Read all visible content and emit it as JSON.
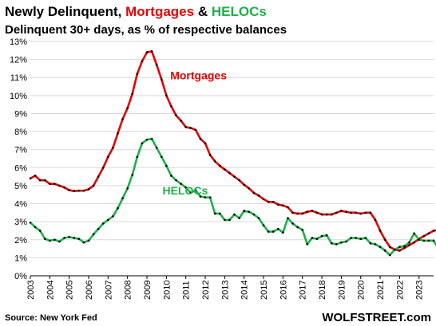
{
  "chart_data": {
    "type": "line",
    "title_parts": [
      {
        "text": "Newly Delinquent, ",
        "color": "#000000"
      },
      {
        "text": "Mortgages",
        "color": "#e60000"
      },
      {
        "text": " & ",
        "color": "#000000"
      },
      {
        "text": "HELOCs",
        "color": "#1fb04a"
      }
    ],
    "subtitle": "Delinquent 30+ days, as % of respective balances",
    "source": "Source: New York Fed",
    "brand": "WOLFSTREET.com",
    "ylim": [
      0,
      13
    ],
    "y_ticks": [
      0,
      1,
      2,
      3,
      4,
      5,
      6,
      7,
      8,
      9,
      10,
      11,
      12,
      13
    ],
    "y_tick_labels": [
      "0%",
      "1%",
      "2%",
      "3%",
      "4%",
      "5%",
      "6%",
      "7%",
      "8%",
      "9%",
      "10%",
      "11%",
      "12%",
      "13%"
    ],
    "x_tick_labels": [
      "2003",
      "2004",
      "2005",
      "2006",
      "2007",
      "2008",
      "2009",
      "2010",
      "2011",
      "2012",
      "2013",
      "2014",
      "2015",
      "2016",
      "2017",
      "2018",
      "2019",
      "2020",
      "2021",
      "2022",
      "2023"
    ],
    "x_start_year": 2003,
    "grid": true,
    "annotations": [
      {
        "text": "Mortgages",
        "color": "#e60000"
      },
      {
        "text": "HELOCs",
        "color": "#1fb04a"
      }
    ],
    "series": [
      {
        "name": "Mortgages",
        "color": "#e60000",
        "values": [
          5.4,
          5.55,
          5.3,
          5.3,
          5.1,
          5.1,
          5.0,
          4.9,
          4.75,
          4.7,
          4.72,
          4.72,
          4.8,
          5.0,
          5.5,
          6.0,
          6.6,
          7.1,
          7.9,
          8.7,
          9.3,
          10.1,
          11.2,
          11.9,
          12.4,
          12.45,
          11.7,
          10.9,
          10.0,
          9.4,
          8.9,
          8.6,
          8.25,
          8.2,
          8.1,
          7.6,
          7.35,
          6.7,
          6.35,
          6.1,
          5.9,
          5.7,
          5.5,
          5.3,
          5.05,
          4.85,
          4.6,
          4.45,
          4.25,
          4.1,
          4.1,
          3.95,
          3.9,
          3.8,
          3.5,
          3.45,
          3.45,
          3.55,
          3.6,
          3.5,
          3.4,
          3.4,
          3.4,
          3.5,
          3.6,
          3.55,
          3.5,
          3.5,
          3.45,
          3.5,
          3.5,
          3.1,
          2.5,
          2.0,
          1.6,
          1.45,
          1.4,
          1.55,
          1.7,
          1.85,
          2.05,
          2.2,
          2.35,
          2.5,
          2.55
        ]
      },
      {
        "name": "HELOCs",
        "color": "#1fb04a",
        "values": [
          2.95,
          2.7,
          2.5,
          2.05,
          1.95,
          2.0,
          1.9,
          2.1,
          2.15,
          2.1,
          2.05,
          1.85,
          1.95,
          2.3,
          2.6,
          2.9,
          3.1,
          3.3,
          3.75,
          4.3,
          4.85,
          5.6,
          6.6,
          7.35,
          7.55,
          7.6,
          7.1,
          6.6,
          6.1,
          5.55,
          5.3,
          5.1,
          4.9,
          4.6,
          4.75,
          4.4,
          4.35,
          4.35,
          3.45,
          3.45,
          3.1,
          3.1,
          3.4,
          3.2,
          3.6,
          3.55,
          3.4,
          3.2,
          2.8,
          2.45,
          2.45,
          2.6,
          2.4,
          3.2,
          2.9,
          2.7,
          2.55,
          1.75,
          2.1,
          2.05,
          2.2,
          2.25,
          1.8,
          1.75,
          1.85,
          1.9,
          2.1,
          2.1,
          2.05,
          2.1,
          1.8,
          1.75,
          1.6,
          1.4,
          1.15,
          1.45,
          1.6,
          1.65,
          1.85,
          2.35,
          2.0,
          1.95,
          1.95,
          1.95,
          1.5
        ]
      }
    ]
  }
}
